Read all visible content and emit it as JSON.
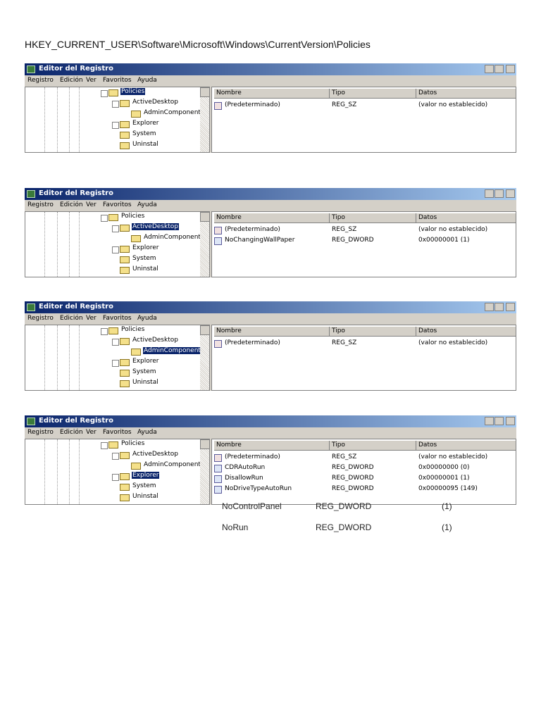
{
  "heading": "HKEY_CURRENT_USER\\Software\\Microsoft\\Windows\\CurrentVersion\\Policies",
  "windows": [
    {
      "title": "Editor del Registro",
      "menu": [
        "Registro",
        "Edición",
        "Ver",
        "Favoritos",
        "Ayuda"
      ],
      "tree": [
        "Policies",
        "ActiveDesktop",
        "AdminComponent",
        "Explorer",
        "System",
        "Uninstal"
      ],
      "selected": 0,
      "columns": [
        "Nombre",
        "Tipo",
        "Datos"
      ],
      "rows": [
        [
          "(Predeterminado)",
          "REG_SZ",
          "(valor no establecido)"
        ]
      ]
    },
    {
      "title": "Editor del Registro",
      "menu": [
        "Registro",
        "Edición",
        "Ver",
        "Favoritos",
        "Ayuda"
      ],
      "tree": [
        "Policies",
        "ActiveDesktop",
        "AdminComponent",
        "Explorer",
        "System",
        "Uninstal"
      ],
      "selected": 1,
      "columns": [
        "Nombre",
        "Tipo",
        "Datos"
      ],
      "rows": [
        [
          "(Predeterminado)",
          "REG_SZ",
          "(valor no establecido)"
        ],
        [
          "NoChangingWallPaper",
          "REG_DWORD",
          "0x00000001 (1)"
        ]
      ]
    },
    {
      "title": "Editor del Registro",
      "menu": [
        "Registro",
        "Edición",
        "Ver",
        "Favoritos",
        "Ayuda"
      ],
      "tree": [
        "Policies",
        "ActiveDesktop",
        "AdminComponent",
        "Explorer",
        "System",
        "Uninstal"
      ],
      "selected": 2,
      "columns": [
        "Nombre",
        "Tipo",
        "Datos"
      ],
      "rows": [
        [
          "(Predeterminado)",
          "REG_SZ",
          "(valor no establecido)"
        ]
      ]
    },
    {
      "title": "Editor del Registro",
      "menu": [
        "Registro",
        "Edición",
        "Ver",
        "Favoritos",
        "Ayuda"
      ],
      "tree": [
        "Policies",
        "ActiveDesktop",
        "AdminComponent",
        "Explorer",
        "System",
        "Uninstal"
      ],
      "selected": 3,
      "columns": [
        "Nombre",
        "Tipo",
        "Datos"
      ],
      "rows": [
        [
          "(Predeterminado)",
          "REG_SZ",
          "(valor no establecido)"
        ],
        [
          "CDRAutoRun",
          "REG_DWORD",
          "0x00000000 (0)"
        ],
        [
          "DisallowRun",
          "REG_DWORD",
          "0x00000001 (1)"
        ],
        [
          "NoDriveTypeAutoRun",
          "REG_DWORD",
          "0x00000095 (149)"
        ]
      ]
    }
  ],
  "extra_rows": [
    [
      "NoControlPanel",
      "REG_DWORD",
      "(1)"
    ],
    [
      "NoRun",
      "REG_DWORD",
      "(1)"
    ]
  ]
}
